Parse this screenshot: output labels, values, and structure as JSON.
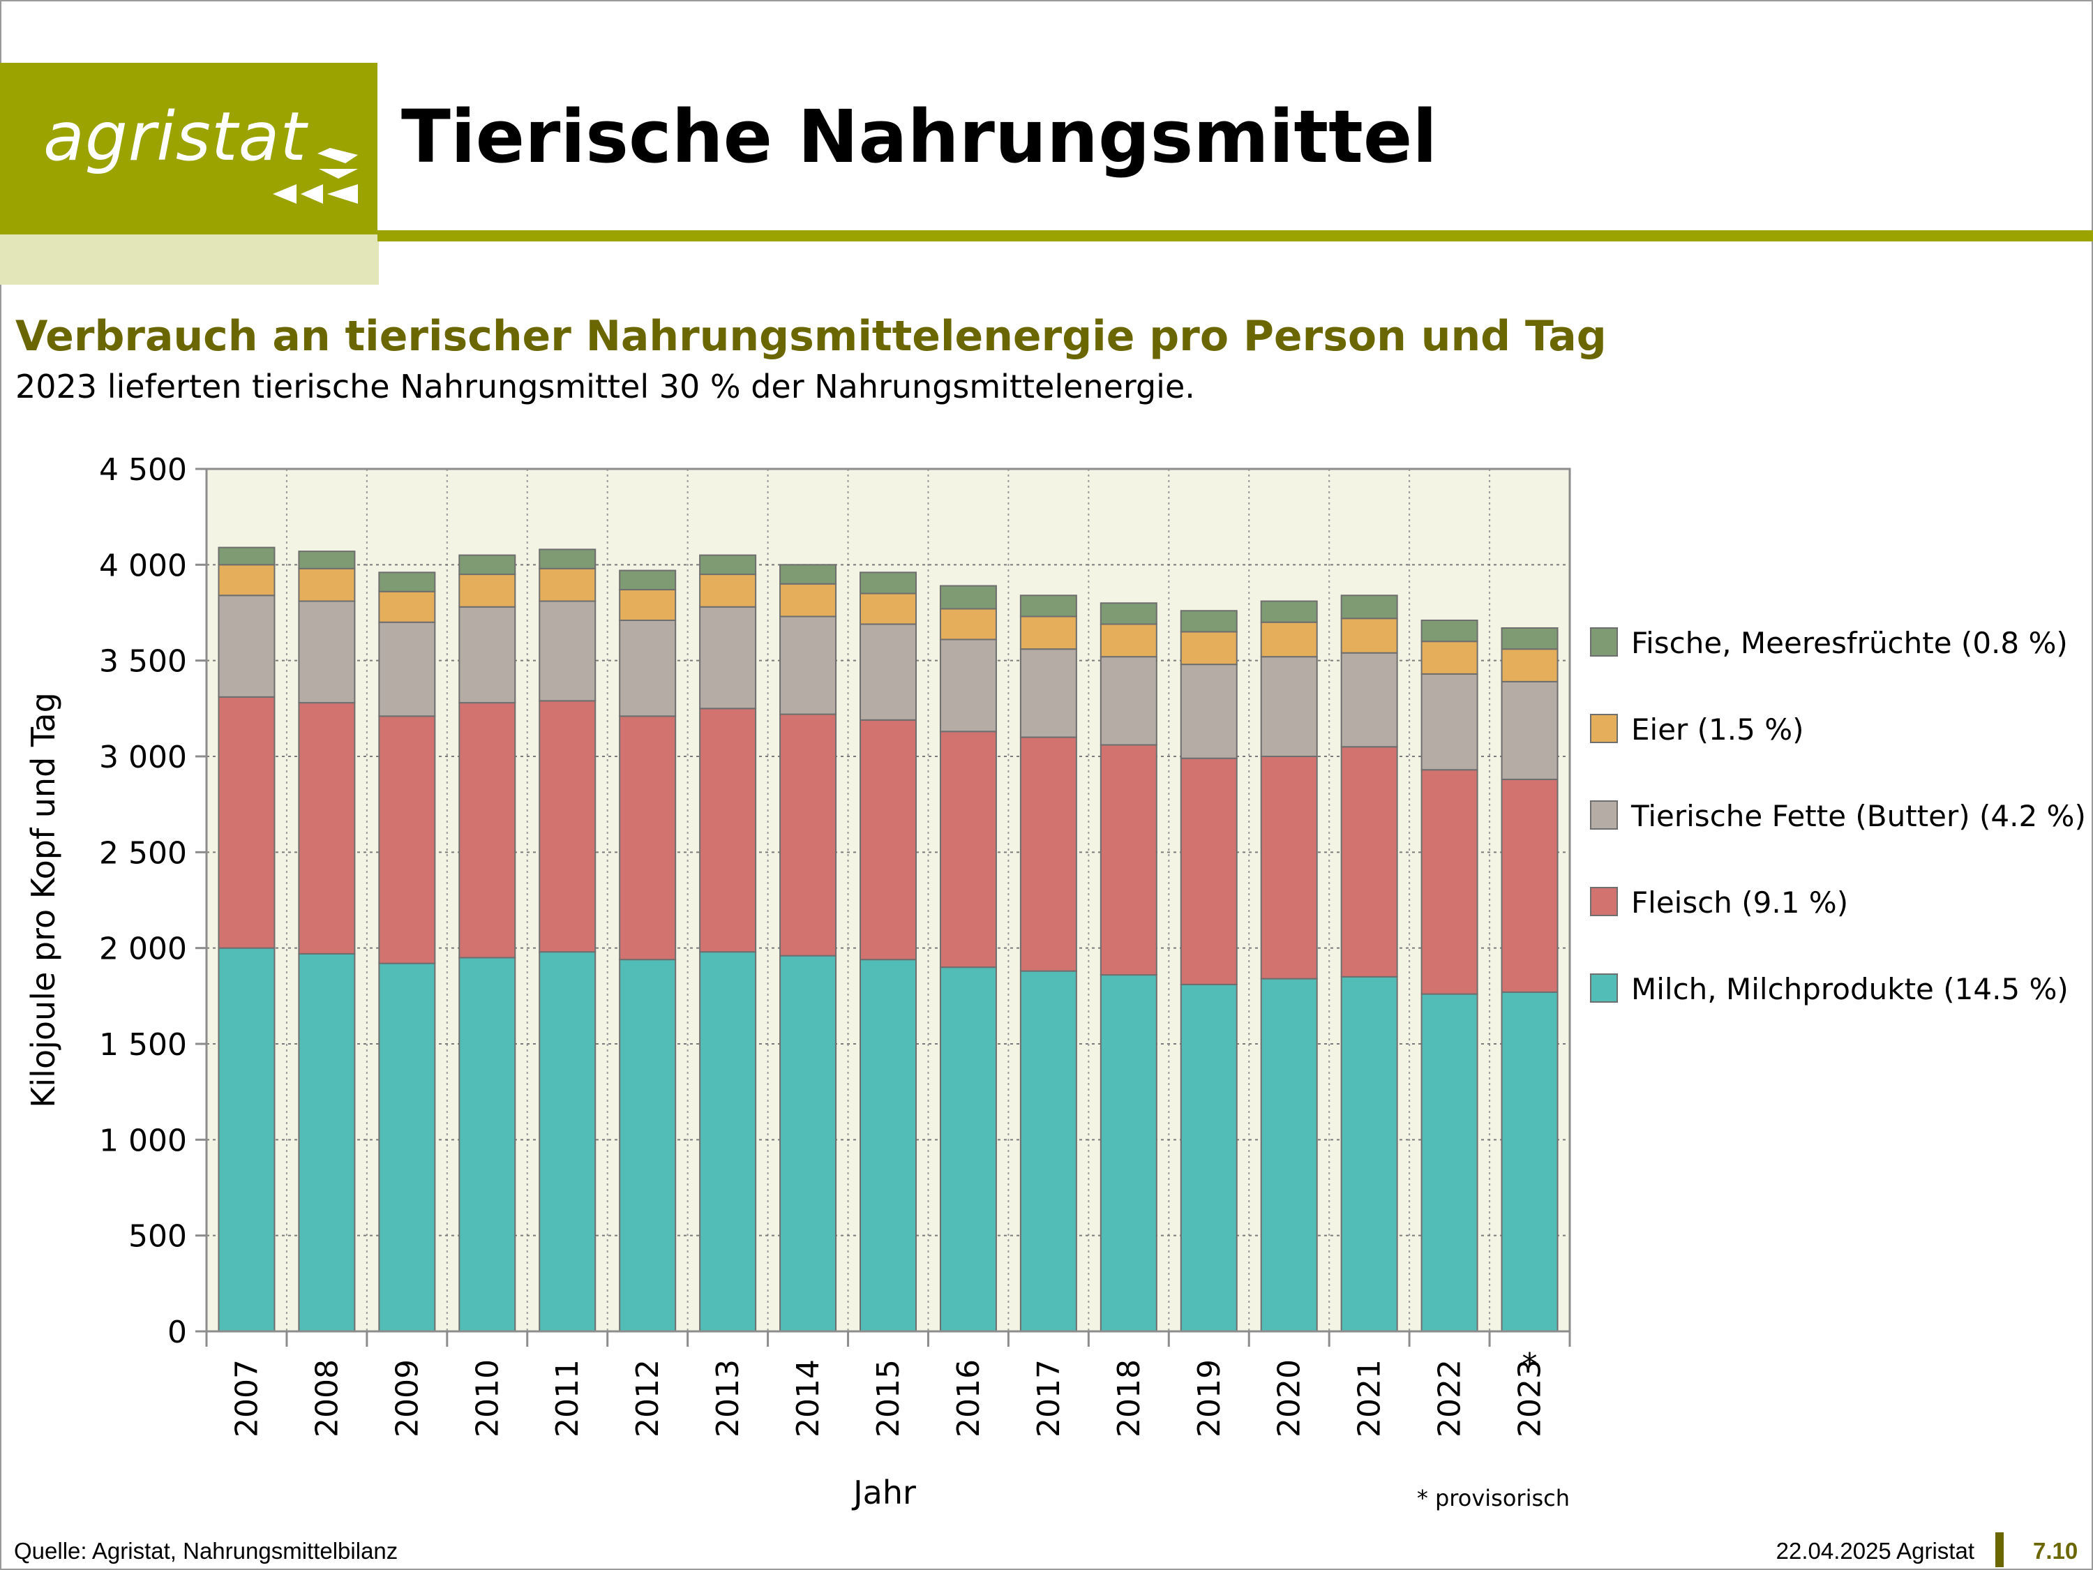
{
  "header": {
    "logo_text": "agristat",
    "page_title": "Tierische Nahrungsmittel"
  },
  "chart_title": "Verbrauch an tierischer Nahrungsmittelenergie pro Person und Tag",
  "chart_subtitle": "2023 lieferten tierische Nahrungsmittel 30 % der Nahrungsmittelenergie.",
  "chart_data": {
    "type": "bar",
    "stacked": true,
    "categories": [
      "2007",
      "2008",
      "2009",
      "2010",
      "2011",
      "2012",
      "2013",
      "2014",
      "2015",
      "2016",
      "2017",
      "2018",
      "2019",
      "2020",
      "2021",
      "2022",
      "2023"
    ],
    "category_marks": [
      "",
      "",
      "",
      "",
      "",
      "",
      "",
      "",
      "",
      "",
      "",
      "",
      "",
      "",
      "",
      "",
      "*"
    ],
    "series": [
      {
        "name": "Milch, Milchprodukte (14.5 %)",
        "color": "#52bdb7",
        "values": [
          2000,
          1970,
          1920,
          1950,
          1980,
          1940,
          1980,
          1960,
          1940,
          1900,
          1880,
          1860,
          1810,
          1840,
          1850,
          1760,
          1770
        ]
      },
      {
        "name": "Fleisch (9.1 %)",
        "color": "#d27370",
        "values": [
          1310,
          1310,
          1290,
          1330,
          1310,
          1270,
          1270,
          1260,
          1250,
          1230,
          1220,
          1200,
          1180,
          1160,
          1200,
          1170,
          1110
        ]
      },
      {
        "name": "Tierische Fette (Butter) (4.2 %)",
        "color": "#b5aca6",
        "values": [
          530,
          530,
          490,
          500,
          520,
          500,
          530,
          510,
          500,
          480,
          460,
          460,
          490,
          520,
          490,
          500,
          510
        ]
      },
      {
        "name": "Eier  (1.5 %)",
        "color": "#e5ae5a",
        "values": [
          160,
          170,
          160,
          170,
          170,
          160,
          170,
          170,
          160,
          160,
          170,
          170,
          170,
          180,
          180,
          170,
          170
        ]
      },
      {
        "name": "Fische, Meeresfrüchte (0.8 %)",
        "color": "#7f9b74",
        "values": [
          90,
          90,
          100,
          100,
          100,
          100,
          100,
          100,
          110,
          120,
          110,
          110,
          110,
          110,
          120,
          110,
          110
        ]
      }
    ],
    "ylabel": "Kilojoule pro Kopf und Tag",
    "xlabel": "Jahr",
    "ylim": [
      0,
      4500
    ],
    "yticks": [
      0,
      500,
      1000,
      1500,
      2000,
      2500,
      3000,
      3500,
      4000,
      4500
    ],
    "ytick_labels": [
      "0",
      "500",
      "1 000",
      "1 500",
      "2 000",
      "2 500",
      "3 000",
      "3 500",
      "4 000",
      "4 500"
    ],
    "grid": true,
    "legend_position": "right",
    "note": "* provisorisch",
    "plot_background": "#f4f4e4"
  },
  "footer": {
    "source": "Quelle: Agristat, Nahrungsmittelbilanz",
    "date": "22.04.2025 Agristat",
    "page": "7.10"
  }
}
